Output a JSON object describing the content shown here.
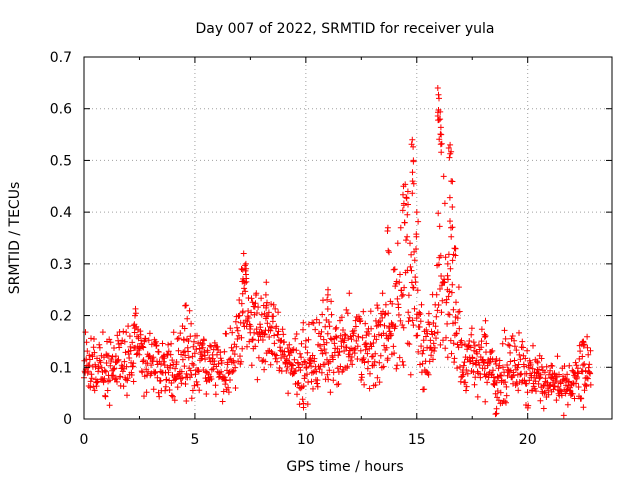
{
  "chart_data": {
    "type": "scatter",
    "title": "Day 007 of 2022, SRMTID for receiver yula",
    "xlabel": "GPS time / hours",
    "ylabel": "SRMTID / TECUs",
    "xlim": [
      0,
      23.8
    ],
    "ylim": [
      0,
      0.7
    ],
    "xticks": [
      0,
      5,
      10,
      15,
      20
    ],
    "yticks": [
      0,
      0.1,
      0.2,
      0.3,
      0.4,
      0.5,
      0.6,
      0.7
    ],
    "ytick_labels": [
      "0",
      "0.1",
      "0.2",
      "0.3",
      "0.4",
      "0.5",
      "0.6",
      "0.7"
    ],
    "grid": true,
    "marker": "+",
    "series_color": "#ff0000",
    "x_sampling": {
      "start": 0,
      "end": 22.85,
      "step": 0.0167
    },
    "envelope": [
      [
        0.0,
        0.11,
        0.035
      ],
      [
        1.0,
        0.1,
        0.03
      ],
      [
        2.0,
        0.11,
        0.035
      ],
      [
        2.4,
        0.14,
        0.03
      ],
      [
        3.0,
        0.11,
        0.03
      ],
      [
        4.0,
        0.1,
        0.03
      ],
      [
        4.7,
        0.13,
        0.04
      ],
      [
        5.5,
        0.11,
        0.03
      ],
      [
        6.5,
        0.1,
        0.03
      ],
      [
        7.0,
        0.17,
        0.04
      ],
      [
        7.3,
        0.22,
        0.05
      ],
      [
        7.6,
        0.18,
        0.04
      ],
      [
        8.2,
        0.17,
        0.04
      ],
      [
        9.0,
        0.12,
        0.03
      ],
      [
        10.0,
        0.1,
        0.035
      ],
      [
        10.8,
        0.13,
        0.04
      ],
      [
        11.5,
        0.13,
        0.035
      ],
      [
        12.5,
        0.14,
        0.04
      ],
      [
        13.0,
        0.12,
        0.035
      ],
      [
        13.5,
        0.17,
        0.05
      ],
      [
        14.0,
        0.2,
        0.06
      ],
      [
        14.5,
        0.26,
        0.09
      ],
      [
        14.9,
        0.22,
        0.08
      ],
      [
        15.3,
        0.12,
        0.035
      ],
      [
        15.8,
        0.17,
        0.06
      ],
      [
        16.1,
        0.28,
        0.12
      ],
      [
        16.6,
        0.2,
        0.07
      ],
      [
        17.0,
        0.12,
        0.035
      ],
      [
        17.5,
        0.1,
        0.03
      ],
      [
        18.0,
        0.12,
        0.035
      ],
      [
        18.6,
        0.07,
        0.03
      ],
      [
        19.3,
        0.11,
        0.04
      ],
      [
        20.0,
        0.09,
        0.03
      ],
      [
        21.0,
        0.07,
        0.02
      ],
      [
        22.0,
        0.065,
        0.02
      ],
      [
        22.4,
        0.1,
        0.035
      ],
      [
        22.85,
        0.11,
        0.03
      ]
    ],
    "peaks": [
      [
        7.2,
        0.32
      ],
      [
        7.3,
        0.3
      ],
      [
        7.1,
        0.29
      ],
      [
        14.4,
        0.45
      ],
      [
        14.6,
        0.44
      ],
      [
        14.8,
        0.54
      ],
      [
        14.85,
        0.5
      ],
      [
        15.0,
        0.4
      ],
      [
        13.7,
        0.37
      ],
      [
        15.95,
        0.64
      ],
      [
        16.0,
        0.62
      ],
      [
        16.05,
        0.58
      ],
      [
        16.1,
        0.55
      ],
      [
        16.5,
        0.53
      ],
      [
        16.55,
        0.46
      ],
      [
        16.6,
        0.41
      ],
      [
        16.7,
        0.33
      ],
      [
        16.4,
        0.3
      ],
      [
        11.0,
        0.25
      ],
      [
        18.1,
        0.19
      ],
      [
        4.6,
        0.22
      ],
      [
        8.2,
        0.24
      ],
      [
        9.9,
        0.03
      ],
      [
        18.6,
        0.02
      ],
      [
        22.5,
        0.15
      ],
      [
        2.3,
        0.2
      ]
    ]
  }
}
